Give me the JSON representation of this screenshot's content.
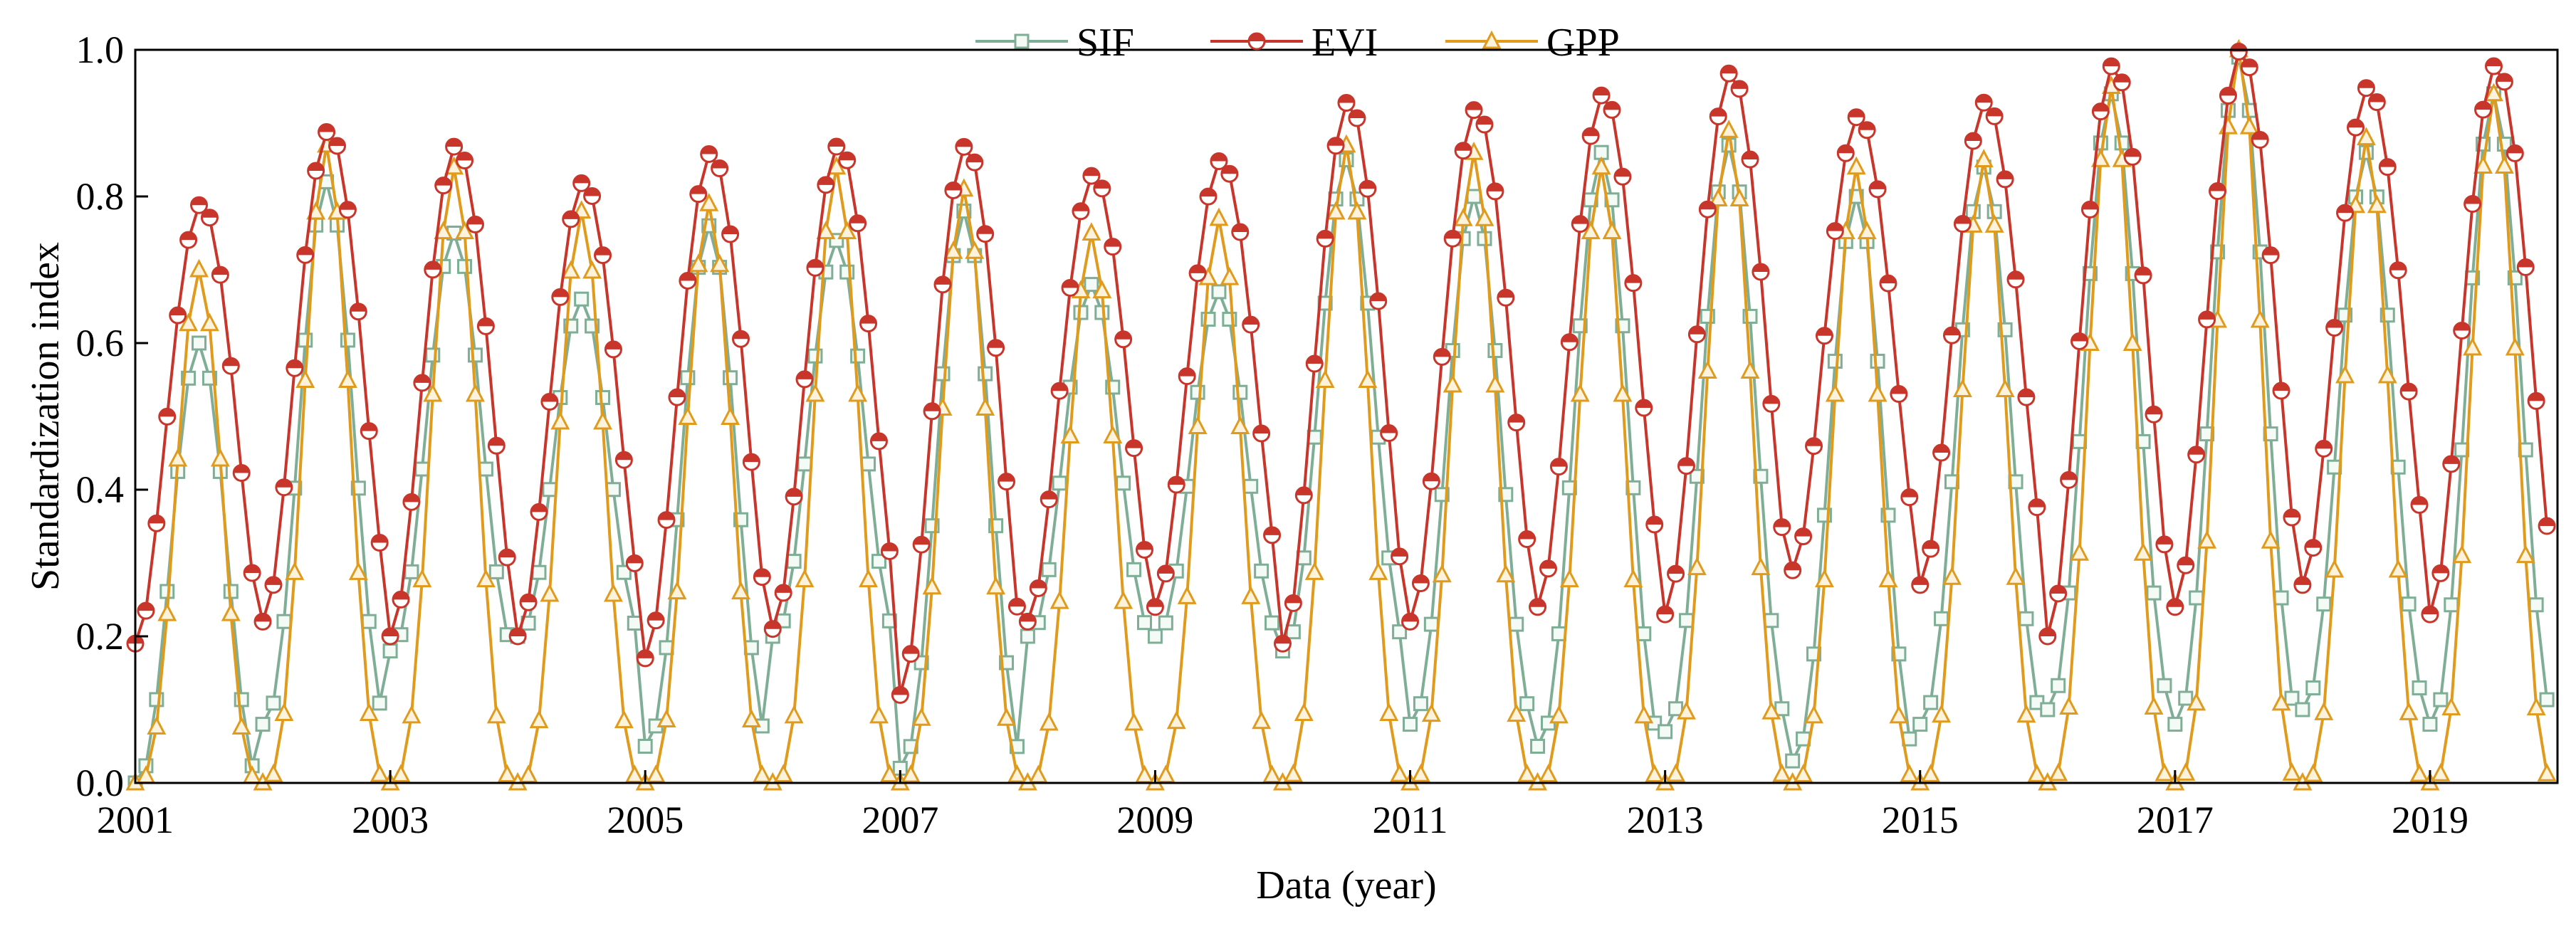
{
  "chart_data": {
    "type": "line",
    "title": "",
    "xlabel": "Data (year)",
    "ylabel": "Standardization index",
    "xlim": [
      2001,
      2020
    ],
    "ylim": [
      0,
      1
    ],
    "x_ticks": [
      "2001",
      "2003",
      "2005",
      "2007",
      "2009",
      "2011",
      "2013",
      "2015",
      "2017",
      "2019"
    ],
    "y_ticks": [
      "0.0",
      "0.2",
      "0.4",
      "0.6",
      "0.8",
      "1.0"
    ],
    "legend_position": "top-center",
    "series": [
      {
        "name": "SIF",
        "color": "#7fae96",
        "marker": "square",
        "seasonal": {
          "peaks": [
            0.6,
            0.82,
            0.75,
            0.66,
            0.76,
            0.74,
            0.78,
            0.68,
            0.67,
            0.85,
            0.8,
            0.86,
            0.87,
            0.8,
            0.84,
            0.94,
            0.99,
            0.86,
            0.94
          ],
          "lows": [
            0.0,
            0.08,
            0.18,
            0.2,
            0.05,
            0.2,
            0.02,
            0.2,
            0.2,
            0.18,
            0.08,
            0.05,
            0.07,
            0.03,
            0.08,
            0.1,
            0.08,
            0.1,
            0.08
          ]
        }
      },
      {
        "name": "EVI",
        "color": "#c8352a",
        "marker": "circle",
        "seasonal": {
          "peaks": [
            0.79,
            0.89,
            0.87,
            0.82,
            0.86,
            0.87,
            0.87,
            0.83,
            0.85,
            0.93,
            0.92,
            0.94,
            0.97,
            0.91,
            0.93,
            0.98,
            1.0,
            0.95,
            0.98
          ],
          "lows": [
            0.19,
            0.22,
            0.2,
            0.2,
            0.17,
            0.21,
            0.12,
            0.22,
            0.24,
            0.19,
            0.22,
            0.24,
            0.23,
            0.29,
            0.27,
            0.2,
            0.24,
            0.27,
            0.23
          ]
        }
      },
      {
        "name": "GPP",
        "color": "#e09a1c",
        "marker": "triangle",
        "seasonal": {
          "peaks": [
            0.7,
            0.87,
            0.84,
            0.78,
            0.79,
            0.84,
            0.81,
            0.75,
            0.77,
            0.87,
            0.86,
            0.84,
            0.89,
            0.84,
            0.85,
            0.95,
            1.0,
            0.88,
            0.94
          ],
          "lows": [
            0.0,
            0.0,
            0.0,
            0.0,
            0.0,
            0.0,
            0.0,
            0.0,
            0.0,
            0.0,
            0.0,
            0.0,
            0.0,
            0.0,
            0.0,
            0.0,
            0.0,
            0.0,
            0.0
          ]
        }
      }
    ]
  }
}
